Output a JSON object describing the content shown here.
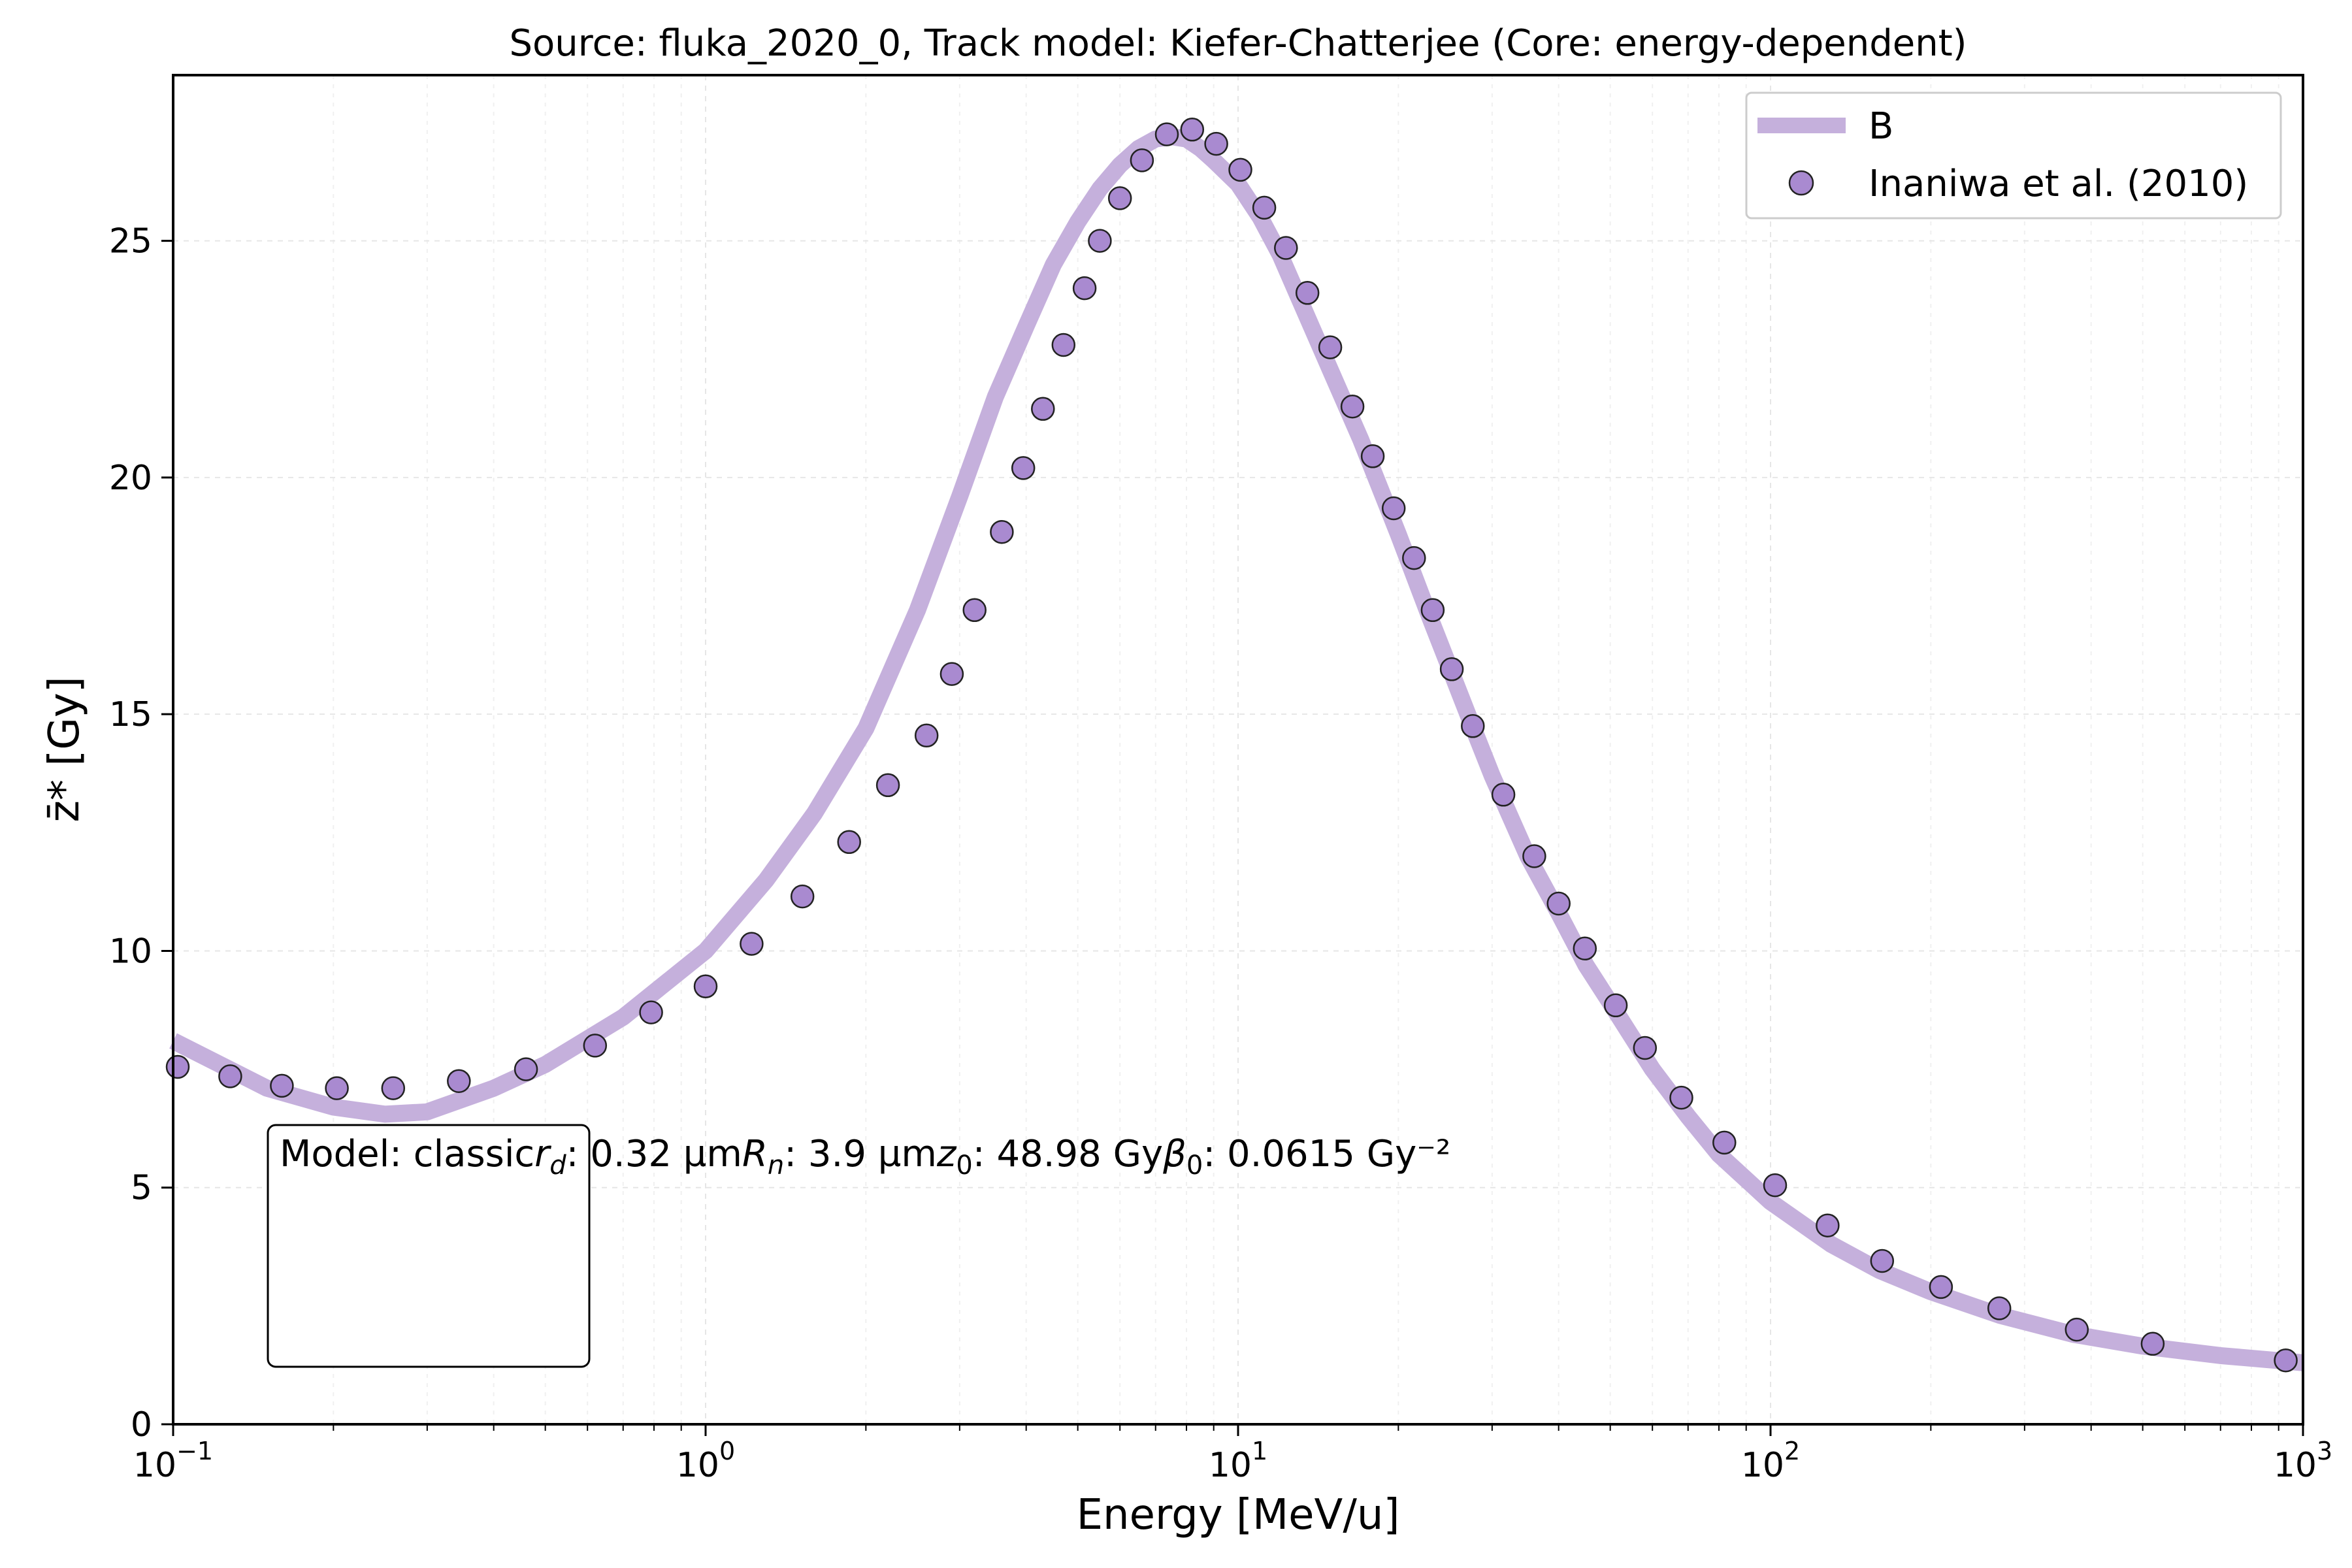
{
  "chart_data": {
    "type": "line",
    "title": "Source: fluka_2020_0, Track model: Kiefer-Chatterjee (Core: energy-dependent)",
    "xlabel": "Energy [MeV/u]",
    "ylabel": "z̄* [Gy]",
    "x_scale": "log",
    "xlim": [
      0.1,
      1000
    ],
    "ylim": [
      0,
      28.5
    ],
    "grid": true,
    "legend_position": "top-right",
    "x_tick_labels": [
      {
        "base": "10",
        "exp": "−1",
        "value": 0.1
      },
      {
        "base": "10",
        "exp": "0",
        "value": 1
      },
      {
        "base": "10",
        "exp": "1",
        "value": 10
      },
      {
        "base": "10",
        "exp": "2",
        "value": 100
      },
      {
        "base": "10",
        "exp": "3",
        "value": 1000
      }
    ],
    "y_ticks": [
      0,
      5,
      10,
      15,
      20,
      25
    ],
    "series": [
      {
        "name": "B",
        "style": "line",
        "color": "#c5b0dc",
        "x": [
          0.1,
          0.15,
          0.2,
          0.25,
          0.3,
          0.4,
          0.5,
          0.7,
          1.0,
          1.3,
          1.6,
          2.0,
          2.5,
          3.0,
          3.5,
          4.0,
          4.5,
          5.0,
          5.5,
          6.0,
          6.5,
          7.0,
          7.5,
          8.0,
          8.5,
          9.0,
          10,
          11,
          12,
          13,
          15,
          17,
          20,
          23,
          27,
          30,
          35,
          40,
          45,
          50,
          60,
          70,
          80,
          100,
          130,
          160,
          200,
          270,
          370,
          500,
          700,
          1000
        ],
        "y": [
          8.1,
          7.1,
          6.7,
          6.55,
          6.6,
          7.1,
          7.6,
          8.6,
          10.0,
          11.5,
          12.9,
          14.7,
          17.2,
          19.6,
          21.7,
          23.2,
          24.5,
          25.4,
          26.1,
          26.6,
          26.95,
          27.15,
          27.2,
          27.15,
          26.95,
          26.7,
          26.2,
          25.5,
          24.7,
          23.8,
          22.2,
          20.8,
          18.8,
          17.0,
          15.0,
          13.7,
          12.0,
          10.8,
          9.7,
          8.9,
          7.5,
          6.5,
          5.7,
          4.7,
          3.8,
          3.25,
          2.8,
          2.3,
          1.9,
          1.65,
          1.45,
          1.3
        ]
      },
      {
        "name": "Inaniwa et al. (2010)",
        "style": "markers",
        "color": "#a98ad0",
        "edgecolor": "#222222",
        "x": [
          0.102,
          0.128,
          0.16,
          0.203,
          0.259,
          0.344,
          0.46,
          0.62,
          0.79,
          1.0,
          1.22,
          1.52,
          1.86,
          2.2,
          2.6,
          2.9,
          3.2,
          3.6,
          3.95,
          4.3,
          4.7,
          5.15,
          5.5,
          6.0,
          6.6,
          7.35,
          8.2,
          9.1,
          10.1,
          11.2,
          12.3,
          13.5,
          14.9,
          16.4,
          17.9,
          19.6,
          21.4,
          23.2,
          25.2,
          27.6,
          31.5,
          36.0,
          40.0,
          44.8,
          51.2,
          58.1,
          68.0,
          81.9,
          102,
          128,
          162,
          209,
          269,
          376,
          522,
          928
        ],
        "y": [
          7.55,
          7.35,
          7.15,
          7.1,
          7.1,
          7.25,
          7.5,
          8.0,
          8.7,
          9.25,
          10.15,
          11.15,
          12.3,
          13.5,
          14.55,
          15.85,
          17.2,
          18.85,
          20.2,
          21.45,
          22.8,
          24.0,
          25.0,
          25.9,
          26.7,
          27.25,
          27.35,
          27.05,
          26.5,
          25.7,
          24.85,
          23.9,
          22.75,
          21.5,
          20.45,
          19.35,
          18.3,
          17.2,
          15.95,
          14.75,
          13.3,
          12.0,
          11.0,
          10.05,
          8.85,
          7.95,
          6.9,
          5.95,
          5.05,
          4.2,
          3.45,
          2.9,
          2.45,
          2.0,
          1.7,
          1.35
        ]
      }
    ],
    "annotation": {
      "lines": [
        {
          "sym": "",
          "sub": "",
          "text": "Model: classic"
        },
        {
          "sym": "r",
          "sub": "d",
          "text": ": 0.32 µm"
        },
        {
          "sym": "R",
          "sub": "n",
          "text": ": 3.9 µm"
        },
        {
          "sym": "z",
          "sub": "0",
          "text": ": 48.98 Gy"
        },
        {
          "sym": "β",
          "sub": "0",
          "text": ": 0.0615 Gy⁻²"
        }
      ]
    }
  }
}
